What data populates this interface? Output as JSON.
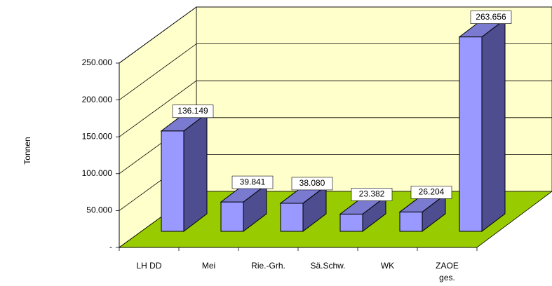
{
  "chart_data": {
    "type": "bar3d",
    "ylabel": "Tonnen",
    "categories": [
      "LH DD",
      "Mei",
      "Rie.-Grh.",
      "Sä.Schw.",
      "WK",
      "ZAOE ges."
    ],
    "values": [
      136149,
      39841,
      38080,
      23382,
      26204,
      263656
    ],
    "value_labels": [
      "136.149",
      "39.841",
      "38.080",
      "23.382",
      "26.204",
      "263.656"
    ],
    "color": "#9999ff",
    "ylim": [
      0,
      250000
    ],
    "yticks": [
      {
        "value": 0,
        "label": "-"
      },
      {
        "value": 50000,
        "label": "50.000"
      },
      {
        "value": 100000,
        "label": "100.000"
      },
      {
        "value": 150000,
        "label": "150.000"
      },
      {
        "value": 200000,
        "label": "200.000"
      },
      {
        "value": 250000,
        "label": "250.000"
      }
    ],
    "grid": true
  }
}
